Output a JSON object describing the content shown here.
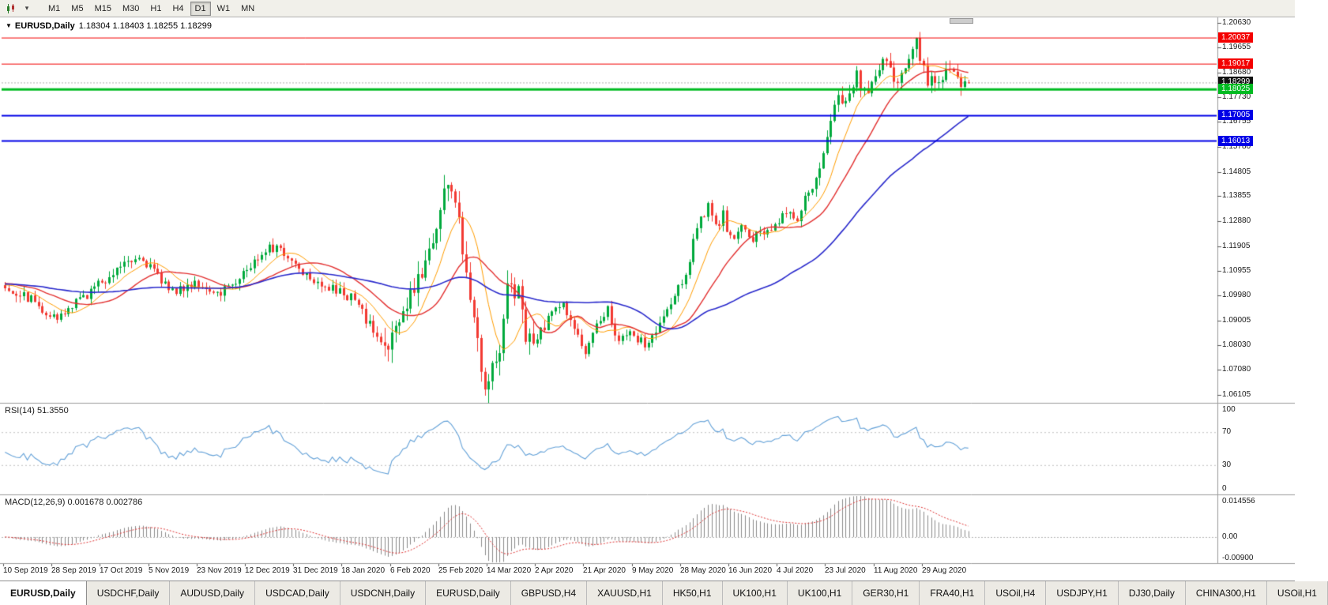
{
  "toolbar": {
    "timeframes": [
      "M1",
      "M5",
      "M15",
      "M30",
      "H1",
      "H4",
      "D1",
      "W1",
      "MN"
    ],
    "active_timeframe": "D1"
  },
  "chart": {
    "title": "EURUSD,Daily",
    "ohlc": "1.18304 1.18403 1.18255 1.18299",
    "y_ticks": [
      "1.20630",
      "1.19655",
      "1.18680",
      "1.17730",
      "1.16755",
      "1.15780",
      "1.14805",
      "1.13855",
      "1.12880",
      "1.11905",
      "1.10955",
      "1.09980",
      "1.09005",
      "1.08030",
      "1.07080",
      "1.06105"
    ],
    "price_tags": [
      {
        "text": "1.20037",
        "value": 1.20037,
        "color": "#f40000",
        "line_width": 1
      },
      {
        "text": "1.19017",
        "value": 1.19017,
        "color": "#f40000",
        "line_width": 1
      },
      {
        "text": "1.18299",
        "value": 1.18299,
        "color": "#111111",
        "line_width": 1,
        "role": "bid"
      },
      {
        "text": "1.18025",
        "value": 1.18025,
        "color": "#00bb22",
        "line_width": 3
      },
      {
        "text": "1.17005",
        "value": 1.17005,
        "color": "#0000e6",
        "line_width": 2
      },
      {
        "text": "1.16013",
        "value": 1.16013,
        "color": "#0000e6",
        "line_width": 2
      }
    ],
    "x_labels": [
      "10 Sep 2019",
      "28 Sep 2019",
      "17 Oct 2019",
      "5 Nov 2019",
      "23 Nov 2019",
      "12 Dec 2019",
      "31 Dec 2019",
      "18 Jan 2020",
      "6 Feb 2020",
      "25 Feb 2020",
      "14 Mar 2020",
      "2 Apr 2020",
      "21 Apr 2020",
      "9 May 2020",
      "28 May 2020",
      "16 Jun 2020",
      "4 Jul 2020",
      "23 Jul 2020",
      "11 Aug 2020",
      "29 Aug 2020"
    ]
  },
  "rsi": {
    "label": "RSI(14) 51.3550",
    "value": "51.3550",
    "color": "#63a1d8",
    "levels": [
      {
        "text": "100",
        "value": 100
      },
      {
        "text": "70",
        "value": 70
      },
      {
        "text": "30",
        "value": 30
      },
      {
        "text": "0",
        "value": 0
      }
    ]
  },
  "macd": {
    "label": "MACD(12,26,9) 0.001678 0.002786",
    "values": "0.001678 0.002786",
    "histogram_color": "#8b8b8b",
    "signal_color": "#e03232",
    "scale": [
      {
        "text": "0.014556",
        "value": 0.0146
      },
      {
        "text": "0.00",
        "value": 0
      },
      {
        "text": "-0.00900",
        "value": -0.009
      }
    ]
  },
  "tabs": {
    "items": [
      "EURUSD,Daily",
      "USDCHF,Daily",
      "AUDUSD,Daily",
      "USDCAD,Daily",
      "USDCNH,Daily",
      "EURUSD,Daily",
      "GBPUSD,H4",
      "XAUUSD,H1",
      "HK50,H1",
      "UK100,H1",
      "UK100,H1",
      "GER30,H1",
      "FRA40,H1",
      "USOil,H4",
      "USDJPY,H1",
      "DJ30,Daily",
      "CHINA300,H1",
      "USOil,H1"
    ],
    "active_index": 0
  },
  "chart_data": {
    "type": "candlestick",
    "symbol": "EURUSD",
    "timeframe": "Daily",
    "bars_visible": 260,
    "last_candle": {
      "open": 1.18304,
      "high": 1.18403,
      "low": 1.18255,
      "close": 1.18299
    },
    "price_axis_range": [
      1.0585,
      1.2078
    ],
    "colors": {
      "up": "#00a93c",
      "down": "#f23a32"
    },
    "moving_averages": [
      {
        "period": 10,
        "color": "#ff9d00",
        "width": 1
      },
      {
        "period": 21,
        "color": "#e33030",
        "width": 1.4
      },
      {
        "period": 55,
        "color": "#2929cc",
        "width": 1.6
      }
    ],
    "horizontal_lines": [
      {
        "price": 1.20037,
        "color": "red"
      },
      {
        "price": 1.19017,
        "color": "red"
      },
      {
        "price": 1.18025,
        "color": "green"
      },
      {
        "price": 1.17005,
        "color": "blue"
      },
      {
        "price": 1.16013,
        "color": "blue"
      }
    ],
    "indicators": {
      "rsi": {
        "period": 14,
        "last": 51.355,
        "levels": [
          70,
          30
        ]
      },
      "macd": {
        "fast": 12,
        "slow": 26,
        "signal": 9,
        "last_macd": 0.001678,
        "last_signal": 0.002786,
        "scale_max": 0.014556,
        "scale_min": -0.009
      }
    },
    "price_path_anchors": [
      [
        0,
        1.1035
      ],
      [
        0.013,
        1.101
      ],
      [
        0.027,
        1.0985
      ],
      [
        0.055,
        1.09
      ],
      [
        0.068,
        1.0955
      ],
      [
        0.082,
        1.0995
      ],
      [
        0.109,
        1.108
      ],
      [
        0.126,
        1.1145
      ],
      [
        0.142,
        1.115
      ],
      [
        0.158,
        1.107
      ],
      [
        0.18,
        1.101
      ],
      [
        0.197,
        1.106
      ],
      [
        0.213,
        1.099
      ],
      [
        0.235,
        1.1045
      ],
      [
        0.257,
        1.112
      ],
      [
        0.273,
        1.12
      ],
      [
        0.29,
        1.116
      ],
      [
        0.311,
        1.109
      ],
      [
        0.339,
        1.102
      ],
      [
        0.361,
        1.099
      ],
      [
        0.377,
        1.089
      ],
      [
        0.393,
        1.0795
      ],
      [
        0.404,
        1.085
      ],
      [
        0.421,
        1.099
      ],
      [
        0.437,
        1.114
      ],
      [
        0.45,
        1.13
      ],
      [
        0.459,
        1.146
      ],
      [
        0.468,
        1.135
      ],
      [
        0.475,
        1.118
      ],
      [
        0.486,
        1.095
      ],
      [
        0.497,
        1.066
      ],
      [
        0.505,
        1.07
      ],
      [
        0.514,
        1.081
      ],
      [
        0.522,
        1.105
      ],
      [
        0.533,
        1.1
      ],
      [
        0.541,
        1.085
      ],
      [
        0.549,
        1.079
      ],
      [
        0.563,
        1.09
      ],
      [
        0.577,
        1.098
      ],
      [
        0.59,
        1.087
      ],
      [
        0.603,
        1.077
      ],
      [
        0.614,
        1.087
      ],
      [
        0.625,
        1.096
      ],
      [
        0.636,
        1.082
      ],
      [
        0.65,
        1.084
      ],
      [
        0.667,
        1.08
      ],
      [
        0.68,
        1.089
      ],
      [
        0.694,
        1.098
      ],
      [
        0.708,
        1.11
      ],
      [
        0.719,
        1.129
      ],
      [
        0.73,
        1.134
      ],
      [
        0.738,
        1.125
      ],
      [
        0.745,
        1.132
      ],
      [
        0.754,
        1.12
      ],
      [
        0.765,
        1.126
      ],
      [
        0.776,
        1.122
      ],
      [
        0.789,
        1.125
      ],
      [
        0.8,
        1.128
      ],
      [
        0.811,
        1.133
      ],
      [
        0.822,
        1.13
      ],
      [
        0.833,
        1.14
      ],
      [
        0.844,
        1.144
      ],
      [
        0.855,
        1.165
      ],
      [
        0.866,
        1.178
      ],
      [
        0.874,
        1.176
      ],
      [
        0.883,
        1.187
      ],
      [
        0.891,
        1.179
      ],
      [
        0.902,
        1.184
      ],
      [
        0.913,
        1.193
      ],
      [
        0.924,
        1.182
      ],
      [
        0.935,
        1.19
      ],
      [
        0.946,
        1.199
      ],
      [
        0.957,
        1.183
      ],
      [
        0.968,
        1.185
      ],
      [
        0.979,
        1.188
      ],
      [
        0.989,
        1.183
      ],
      [
        1,
        1.183
      ]
    ]
  }
}
